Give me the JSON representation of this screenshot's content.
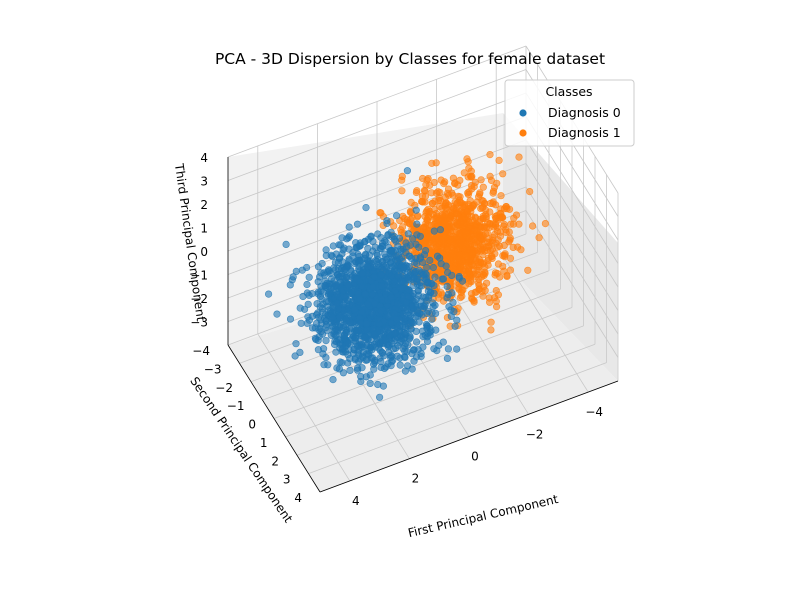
{
  "chart_data": {
    "type": "scatter",
    "projection": "3d",
    "title": "PCA - 3D Dispersion by Classes for female dataset",
    "xlabel": "First Principal Component",
    "ylabel": "Second Principal Component",
    "zlabel": "Third Principal Component",
    "xlim": [
      -5,
      5
    ],
    "ylim": [
      -4,
      4
    ],
    "zlim": [
      -4,
      4
    ],
    "xticks": [
      "4",
      "2",
      "0",
      "−2",
      "−4"
    ],
    "yticks": [
      "−4",
      "−3",
      "−2",
      "−1",
      "0",
      "1",
      "2",
      "3",
      "4"
    ],
    "zticks": [
      "4",
      "3",
      "2",
      "1",
      "0",
      "−1",
      "−2",
      "−3"
    ],
    "grid": true,
    "legend": {
      "title": "Classes",
      "placement": "top-right"
    },
    "series": [
      {
        "name": "Diagnosis 0",
        "color": "#1f77b4",
        "centroid": {
          "x": 1.8,
          "y": 0.4,
          "z": -0.3
        },
        "spread": {
          "x": 0.9,
          "y": 1.0,
          "z": 0.9
        }
      },
      {
        "name": "Diagnosis 1",
        "color": "#ff7f0e",
        "centroid": {
          "x": -1.2,
          "y": -0.4,
          "z": 0.2
        },
        "spread": {
          "x": 0.8,
          "y": 0.9,
          "z": 0.9
        }
      }
    ]
  }
}
